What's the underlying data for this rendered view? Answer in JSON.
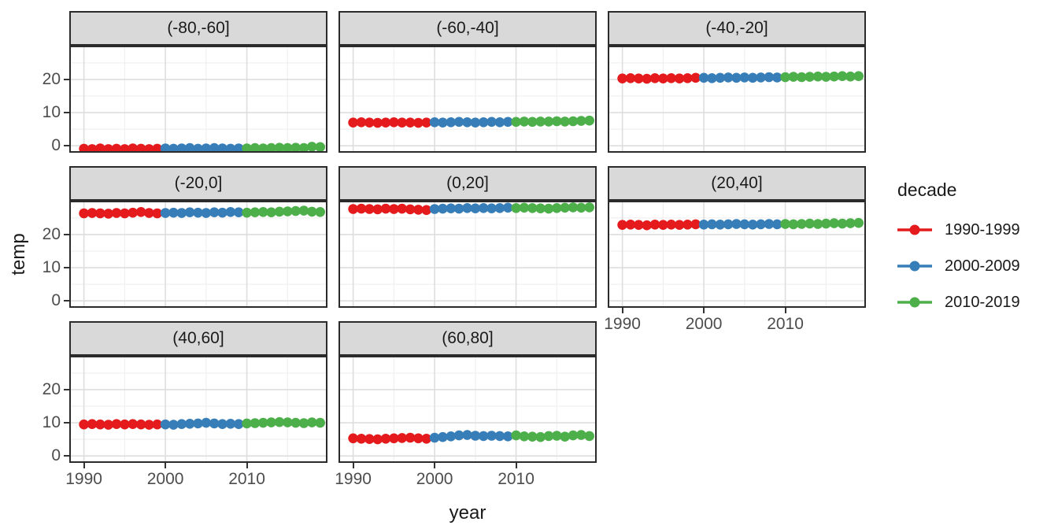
{
  "chart_data": {
    "type": "scatter",
    "xlabel": "year",
    "ylabel": "temp",
    "x_domain": [
      1988.2,
      2019.9
    ],
    "y_domain": [
      -2.1,
      30.2
    ],
    "x_ticks": [
      1990,
      2000,
      2010
    ],
    "y_ticks": [
      0,
      10,
      20
    ],
    "x_minor": [
      1995,
      2005,
      2015
    ],
    "y_minor": [
      5,
      15,
      25
    ],
    "grid": true,
    "years": [
      1990,
      1991,
      1992,
      1993,
      1994,
      1995,
      1996,
      1997,
      1998,
      1999,
      2000,
      2001,
      2002,
      2003,
      2004,
      2005,
      2006,
      2007,
      2008,
      2009,
      2010,
      2011,
      2012,
      2013,
      2014,
      2015,
      2016,
      2017,
      2018,
      2019
    ],
    "facets": [
      {
        "label": "(-80,-60]",
        "values": [
          -0.9,
          -1.0,
          -0.8,
          -1.0,
          -0.9,
          -1.0,
          -0.8,
          -0.9,
          -1.0,
          -0.9,
          -0.8,
          -0.9,
          -0.8,
          -0.7,
          -0.9,
          -0.8,
          -0.7,
          -0.8,
          -0.9,
          -0.8,
          -0.8,
          -0.7,
          -0.8,
          -0.7,
          -0.6,
          -0.7,
          -0.6,
          -0.7,
          -0.3,
          -0.4
        ]
      },
      {
        "label": "(-60,-40]",
        "values": [
          7.0,
          7.1,
          7.0,
          6.9,
          7.0,
          7.1,
          7.0,
          7.0,
          6.9,
          7.0,
          7.1,
          7.0,
          7.1,
          7.2,
          7.1,
          7.0,
          7.1,
          7.2,
          7.1,
          7.2,
          7.2,
          7.3,
          7.2,
          7.3,
          7.3,
          7.4,
          7.3,
          7.4,
          7.5,
          7.6
        ]
      },
      {
        "label": "(-40,-20]",
        "values": [
          20.3,
          20.4,
          20.3,
          20.2,
          20.4,
          20.3,
          20.4,
          20.3,
          20.4,
          20.5,
          20.5,
          20.4,
          20.5,
          20.6,
          20.5,
          20.6,
          20.5,
          20.6,
          20.7,
          20.6,
          20.7,
          20.8,
          20.7,
          20.8,
          20.9,
          20.8,
          20.9,
          21.0,
          20.9,
          21.0
        ]
      },
      {
        "label": "(-20,0]",
        "values": [
          26.4,
          26.5,
          26.4,
          26.3,
          26.5,
          26.4,
          26.6,
          26.8,
          26.5,
          26.4,
          26.5,
          26.6,
          26.5,
          26.7,
          26.6,
          26.5,
          26.7,
          26.6,
          26.8,
          26.7,
          26.6,
          26.7,
          26.8,
          26.7,
          26.9,
          27.0,
          27.1,
          27.2,
          26.9,
          26.8
        ]
      },
      {
        "label": "(0,20]",
        "values": [
          27.7,
          27.8,
          27.7,
          27.6,
          27.8,
          27.7,
          27.8,
          27.6,
          27.5,
          27.4,
          27.7,
          27.8,
          27.9,
          27.8,
          28.0,
          27.9,
          28.0,
          27.9,
          28.0,
          28.1,
          28.0,
          28.1,
          28.0,
          27.9,
          27.8,
          28.0,
          28.1,
          28.2,
          28.1,
          28.2
        ]
      },
      {
        "label": "(20,40]",
        "values": [
          22.9,
          23.0,
          22.9,
          22.8,
          23.0,
          22.9,
          23.0,
          22.9,
          23.0,
          23.1,
          23.0,
          23.1,
          23.0,
          23.1,
          23.2,
          23.1,
          23.0,
          23.1,
          23.2,
          23.1,
          23.2,
          23.1,
          23.2,
          23.3,
          23.2,
          23.3,
          23.4,
          23.3,
          23.4,
          23.5
        ]
      },
      {
        "label": "(40,60]",
        "values": [
          9.5,
          9.6,
          9.5,
          9.4,
          9.6,
          9.5,
          9.6,
          9.5,
          9.4,
          9.5,
          9.5,
          9.4,
          9.6,
          9.7,
          9.8,
          10.0,
          9.8,
          9.6,
          9.7,
          9.6,
          9.8,
          9.9,
          10.0,
          10.1,
          10.2,
          10.1,
          10.0,
          9.9,
          10.1,
          10.0
        ]
      },
      {
        "label": "(60,80]",
        "values": [
          5.3,
          5.2,
          5.1,
          5.0,
          5.2,
          5.3,
          5.4,
          5.5,
          5.3,
          5.2,
          5.5,
          5.7,
          5.9,
          6.2,
          6.3,
          6.1,
          6.0,
          6.1,
          6.0,
          5.9,
          6.2,
          5.9,
          5.8,
          5.7,
          6.0,
          6.1,
          5.8,
          6.2,
          6.3,
          6.0
        ]
      }
    ],
    "legend": {
      "title": "decade",
      "position": "right",
      "items": [
        {
          "label": "1990-1999",
          "color": "#E41A1C",
          "start": 1990,
          "end": 1999
        },
        {
          "label": "2000-2009",
          "color": "#377EB8",
          "start": 2000,
          "end": 2009
        },
        {
          "label": "2010-2019",
          "color": "#4DAF4A",
          "start": 2010,
          "end": 2019
        }
      ]
    },
    "style": {
      "strip_bg": "#D9D9D9",
      "panel_border": "#2B2B2B",
      "grid_major": "#DEDEDE",
      "grid_minor": "#F0F0F0",
      "tick_color": "#333333",
      "tick_label_color": "#4D4D4D",
      "text_color": "#1A1A1A"
    }
  }
}
